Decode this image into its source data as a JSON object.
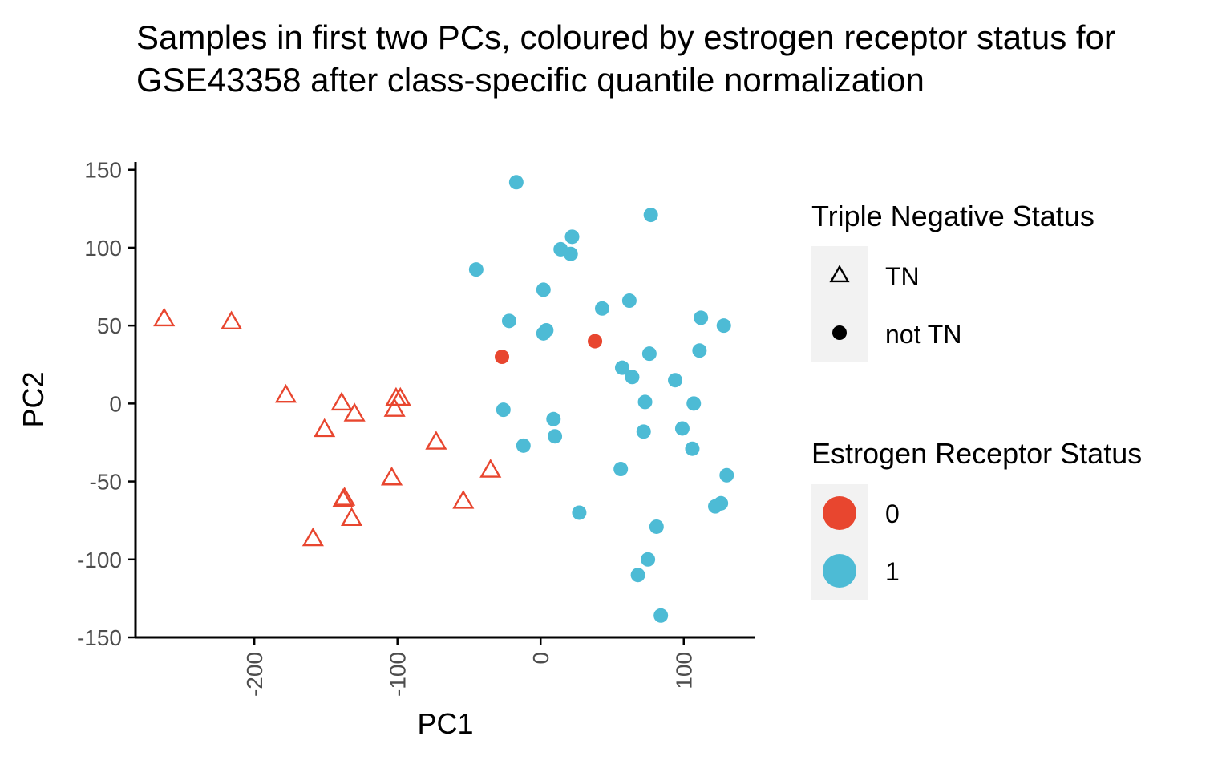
{
  "chart_data": {
    "type": "scatter",
    "title": "Samples in first two PCs, coloured by estrogen receptor status for GSE43358 after class-specific quantile normalization",
    "xlabel": "PC1",
    "ylabel": "PC2",
    "xlim": [
      -283,
      150
    ],
    "ylim": [
      -150,
      155
    ],
    "x_ticks": [
      -200,
      -100,
      0,
      100
    ],
    "x_tick_labels": [
      "-200",
      "-100",
      "0",
      "100"
    ],
    "y_ticks": [
      150,
      100,
      50,
      0,
      -50,
      -100,
      -150
    ],
    "y_tick_labels": [
      "150",
      "100",
      "50",
      "0",
      "-50",
      "-100",
      "-150"
    ],
    "grid": false,
    "legend_placement": "right",
    "legends": [
      {
        "title": "Triple Negative Status",
        "entries": [
          {
            "label": "TN",
            "shape": "triangle-open"
          },
          {
            "label": "not TN",
            "shape": "circle"
          }
        ]
      },
      {
        "title": "Estrogen Receptor Status",
        "entries": [
          {
            "label": "0",
            "color": "#E8462F"
          },
          {
            "label": "1",
            "color": "#4DBBD5"
          }
        ]
      }
    ],
    "colors": {
      "0": "#E8462F",
      "1": "#4DBBD5"
    },
    "series": [
      {
        "er": "0",
        "tn": "TN",
        "shape": "triangle-open",
        "color": "#E8462F",
        "x": [
          -263,
          -216,
          -178,
          -139,
          -130,
          -151,
          -101,
          -98,
          -102,
          -73,
          -137,
          -138,
          -132,
          -104,
          -54,
          -35,
          -159
        ],
        "y": [
          54,
          52,
          5,
          0,
          -7,
          -17,
          3,
          3,
          -4,
          -25,
          -61,
          -62,
          -74,
          -48,
          -63,
          -43,
          -87
        ]
      },
      {
        "er": "0",
        "tn": "not TN",
        "shape": "circle",
        "color": "#E8462F",
        "x": [
          -27,
          38
        ],
        "y": [
          30,
          40
        ]
      },
      {
        "er": "1",
        "tn": "not TN",
        "shape": "circle",
        "color": "#4DBBD5",
        "x": [
          -17,
          77,
          22,
          14,
          21,
          -45,
          2,
          62,
          43,
          -22,
          4,
          2,
          112,
          128,
          76,
          111,
          57,
          64,
          94,
          73,
          107,
          -26,
          9,
          99,
          10,
          -12,
          72,
          106,
          56,
          130,
          126,
          122,
          27,
          81,
          75,
          68,
          84
        ],
        "y": [
          142,
          121,
          107,
          99,
          96,
          86,
          73,
          66,
          61,
          53,
          47,
          45,
          55,
          50,
          32,
          34,
          23,
          17,
          15,
          1,
          0,
          -4,
          -10,
          -16,
          -21,
          -27,
          -18,
          -29,
          -42,
          -46,
          -64,
          -66,
          -70,
          -79,
          -100,
          -110,
          -136
        ]
      }
    ]
  }
}
